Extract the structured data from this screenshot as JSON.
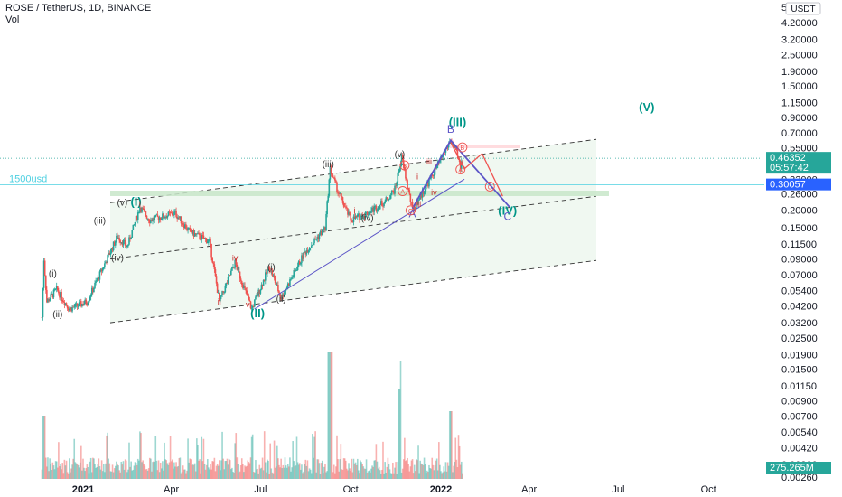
{
  "legend": {
    "symbol": "ROSE / TetherUS, 1D, BINANCE",
    "volume": "Vol"
  },
  "chart_data": {
    "type": "candlestick",
    "price_scale": "log",
    "currency": "USDT",
    "y_tick_labels": [
      "5.40000",
      "4.20000",
      "3.20000",
      "2.50000",
      "1.90000",
      "1.50000",
      "1.15000",
      "0.90000",
      "0.70000",
      "0.55000",
      "0.42000",
      "0.33000",
      "0.26000",
      "0.20000",
      "0.15000",
      "0.11500",
      "0.09000",
      "0.07000",
      "0.05400",
      "0.04200",
      "0.03200",
      "0.02500",
      "0.01900",
      "0.01500",
      "0.01150",
      "0.00900",
      "0.00700",
      "0.00540",
      "0.00420",
      "0.00320",
      "0.00260"
    ],
    "x_tick_labels": [
      "2021",
      "Apr",
      "Jul",
      "Oct",
      "2022",
      "Apr",
      "Jul",
      "Oct"
    ],
    "price_badges": [
      {
        "label": "0.46352",
        "sub": "05:57:42",
        "color": "#26a69a"
      },
      {
        "label": "0.30057",
        "sub": "",
        "color": "#2962ff"
      },
      {
        "label": "275.265M",
        "sub": "",
        "color": "#26a69a"
      }
    ],
    "horizontal_levels": [
      {
        "label": "1500usd",
        "value": 0.30057,
        "color": "#4dd0e1"
      }
    ],
    "channel": {
      "upper": [
        0.225,
        0.63
      ],
      "middle": [
        0.09,
        0.25
      ],
      "lower": [
        0.032,
        0.088
      ],
      "fill": "#e8f5e9"
    },
    "wave_labels": {
      "primary": [
        {
          "text": "(I)",
          "date": "2021-02-24",
          "price": 0.215
        },
        {
          "text": "(II)",
          "date": "2021-06-28",
          "price": 0.035
        },
        {
          "text": "(III)",
          "date": "2022-01-18",
          "price": 0.78
        },
        {
          "text": "(IV)",
          "date": "2022-03-10",
          "price": 0.185
        },
        {
          "text": "(V)",
          "date": "2022-07-30",
          "price": 1.0
        }
      ],
      "intermediate": [
        {
          "text": "(i)",
          "date": "2020-12-01",
          "price": 0.068
        },
        {
          "text": "(ii)",
          "date": "2020-12-06",
          "price": 0.035
        },
        {
          "text": "(iii)",
          "date": "2021-01-18",
          "price": 0.16
        },
        {
          "text": "(iv)",
          "date": "2021-02-05",
          "price": 0.088
        },
        {
          "text": "(v)",
          "date": "2021-02-10",
          "price": 0.215
        },
        {
          "text": "(i)",
          "date": "2021-07-12",
          "price": 0.075
        },
        {
          "text": "(ii)",
          "date": "2021-07-22",
          "price": 0.045
        },
        {
          "text": "(iii)",
          "date": "2021-09-08",
          "price": 0.4
        },
        {
          "text": "(iv)",
          "date": "2021-10-18",
          "price": 0.167
        },
        {
          "text": "(v)",
          "date": "2021-11-20",
          "price": 0.47
        }
      ],
      "minor": [
        {
          "text": "i",
          "date": "2021-02-28",
          "price": 0.21
        },
        {
          "text": "ii",
          "date": "2021-05-20",
          "price": 0.043
        },
        {
          "text": "iv",
          "date": "2021-06-05",
          "price": 0.088
        },
        {
          "text": "v",
          "date": "2021-06-18",
          "price": 0.041
        },
        {
          "text": "i",
          "date": "2021-10-05",
          "price": 0.19
        },
        {
          "text": "iii",
          "date": "2021-12-20",
          "price": 0.42
        },
        {
          "text": "i",
          "date": "2021-12-08",
          "price": 0.33
        },
        {
          "text": "ii",
          "date": "2021-12-10",
          "price": 0.21
        },
        {
          "text": "iv",
          "date": "2021-12-25",
          "price": 0.255
        }
      ],
      "abc_blue": [
        {
          "text": "A",
          "date": "2021-12-03",
          "price": 0.178
        },
        {
          "text": "B",
          "date": "2022-01-11",
          "price": 0.7
        },
        {
          "text": "C",
          "date": "2022-03-10",
          "price": 0.17
        }
      ],
      "abc_red_circled": [
        {
          "text": "A",
          "date": "2022-01-21",
          "price": 0.37
        },
        {
          "text": "B",
          "date": "2022-01-23",
          "price": 0.53
        },
        {
          "text": "C",
          "date": "2022-02-20",
          "price": 0.28
        },
        {
          "text": "B",
          "date": "2021-11-25",
          "price": 0.395
        },
        {
          "text": "C",
          "date": "2021-12-01",
          "price": 0.19
        },
        {
          "text": "A",
          "date": "2021-11-23",
          "price": 0.26
        }
      ]
    },
    "projection_paths": {
      "blue": [
        [
          "2021-12-03",
          0.205
        ],
        [
          "2022-01-11",
          0.62
        ],
        [
          "2022-03-12",
          0.21
        ]
      ],
      "red": [
        [
          "2022-01-11",
          0.6
        ],
        [
          "2022-01-25",
          0.39
        ],
        [
          "2022-02-12",
          0.5
        ],
        [
          "2022-03-05",
          0.25
        ]
      ]
    },
    "grid": false
  }
}
